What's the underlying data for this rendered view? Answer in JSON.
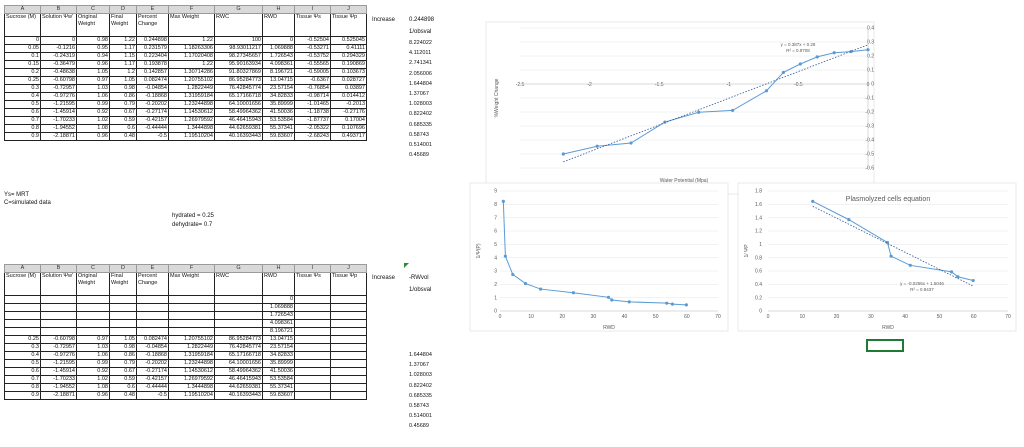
{
  "colors": {
    "series": "#5b9bd5",
    "trend": "#2f5597",
    "selection": "#1e7b34",
    "grid_header": "#d9d9d9"
  },
  "column_letters": [
    "A",
    "B",
    "C",
    "D",
    "E",
    "F",
    "G",
    "H",
    "I",
    "J"
  ],
  "table1": {
    "headers": [
      "Sucrose (M)",
      "Solution Ψw'",
      "Original Weight",
      "Final Weight",
      "Percent Change",
      "Max Weight",
      "RWC",
      "RWD",
      "Tissue Ψs",
      "Tissue Ψp"
    ],
    "rows": [
      [
        "0",
        "0",
        "0.98",
        "1.22",
        "0.244898",
        "1.22",
        "100",
        "0",
        "-0.52504",
        "0.525045"
      ],
      [
        "0.05",
        "-0.1216",
        "0.95",
        "1.17",
        "0.231579",
        "1.18263306",
        "98.93011217",
        "1.069888",
        "-0.53271",
        "0.41111"
      ],
      [
        "0.1",
        "-0.24319",
        "0.94",
        "1.15",
        "0.223404",
        "1.17020408",
        "98.27345657",
        "1.726543",
        "-0.53752",
        "0.294329"
      ],
      [
        "0.15",
        "-0.36479",
        "0.96",
        "1.17",
        "0.193878",
        "1.22",
        "95.90163934",
        "4.098361",
        "-0.55565",
        "0.190869"
      ],
      [
        "0.2",
        "-0.48638",
        "1.05",
        "1.2",
        "0.142857",
        "1.30714286",
        "91.80327869",
        "8.196721",
        "-0.59005",
        "0.103673"
      ],
      [
        "0.25",
        "-0.60798",
        "0.97",
        "1.05",
        "0.082474",
        "1.20755102",
        "86.95284773",
        "13.04715",
        "-0.6367",
        "0.028727"
      ],
      [
        "0.3",
        "-0.72957",
        "1.03",
        "0.98",
        "-0.04854",
        "1.2822449",
        "76.42845774",
        "23.57154",
        "-0.76854",
        "0.03897"
      ],
      [
        "0.4",
        "-0.97276",
        "1.06",
        "0.86",
        "-0.18868",
        "1.31959184",
        "65.17166718",
        "34.82833",
        "-0.98714",
        "0.014412"
      ],
      [
        "0.5",
        "-1.21595",
        "0.99",
        "0.79",
        "-0.20202",
        "1.23244898",
        "64.10001656",
        "35.89999",
        "-1.01465",
        "-0.2013"
      ],
      [
        "0.6",
        "-1.45914",
        "0.92",
        "0.67",
        "-0.27174",
        "1.14530612",
        "58.49964362",
        "41.50036",
        "-1.18738",
        "-0.27176"
      ],
      [
        "0.7",
        "-1.70233",
        "1.02",
        "0.59",
        "-0.42157",
        "1.26979592",
        "46.46415943",
        "53.53584",
        "-1.87737",
        "0.17004"
      ],
      [
        "0.8",
        "-1.94552",
        "1.08",
        "0.6",
        "-0.44444",
        "1.3444898",
        "44.62659381",
        "55.37341",
        "-2.05322",
        "0.107696"
      ],
      [
        "0.9",
        "-2.18871",
        "0.96",
        "0.48",
        "-0.5",
        "1.19510204",
        "40.16393443",
        "59.83607",
        "-2.68243",
        "0.493717"
      ]
    ],
    "increase_label": "Increase",
    "col_k_header": "0.244898",
    "col_k_sub": "1/obsval",
    "col_k_values": [
      "8.224022",
      "4.112011",
      "2.741341",
      "2.056006",
      "1.644804",
      "1.37067",
      "1.028003",
      "0.822402",
      "0.685335",
      "0.58743",
      "0.514001",
      "0.45689"
    ]
  },
  "notes": {
    "line1": "Ys= MRT",
    "line2": "C=simulated data",
    "hydrated": "hydrated = 0.25",
    "dehydrated": "dehydrate= 0.7"
  },
  "table2": {
    "headers": [
      "Sucrose (M)",
      "Solution Ψw'",
      "Original Weight",
      "Final Weight",
      "Percent Change",
      "Max Weight",
      "RWC",
      "RWD",
      "Tissue Ψs",
      "Tissue Ψp"
    ],
    "rwd_only": [
      "0",
      "1.069888",
      "1.726543",
      "4.098361",
      "8.196721"
    ],
    "rows": [
      [
        "0.25",
        "-0.60798",
        "0.97",
        "1.05",
        "0.082474",
        "1.20755102",
        "86.95284773",
        "13.04715"
      ],
      [
        "0.3",
        "-0.72957",
        "1.03",
        "0.98",
        "-0.04854",
        "1.2822449",
        "76.42845774",
        "23.57154"
      ],
      [
        "0.4",
        "-0.97276",
        "1.06",
        "0.86",
        "-0.18868",
        "1.31959184",
        "65.17166718",
        "34.82833"
      ],
      [
        "0.5",
        "-1.21595",
        "0.99",
        "0.79",
        "-0.20202",
        "1.23244898",
        "64.10001656",
        "35.89999"
      ],
      [
        "0.6",
        "-1.45914",
        "0.92",
        "0.67",
        "-0.27174",
        "1.14530612",
        "58.49964362",
        "41.50036"
      ],
      [
        "0.7",
        "-1.70233",
        "1.02",
        "0.59",
        "-0.42157",
        "1.26979592",
        "46.46415943",
        "53.53584"
      ],
      [
        "0.8",
        "-1.94552",
        "1.08",
        "0.6",
        "-0.44444",
        "1.3444898",
        "44.62659381",
        "55.37341"
      ],
      [
        "0.9",
        "-2.18871",
        "0.96",
        "0.48",
        "-0.5",
        "1.19510204",
        "40.16393443",
        "59.83607"
      ]
    ],
    "increase_label": "Increase",
    "col_k_header": "-RWvol",
    "col_k_sub": "1/obsval",
    "col_k_values": [
      "1.644804",
      "1.37067",
      "1.028003",
      "0.822402",
      "0.685335",
      "0.58743",
      "0.514001",
      "0.45689"
    ]
  },
  "chart_data": [
    {
      "type": "scatter",
      "title": "",
      "xlabel": "Water Potential (Mpa)",
      "ylabel": "%Weight Change",
      "xlim": [
        -2.5,
        0
      ],
      "ylim": [
        -0.6,
        0.4
      ],
      "x_ticks": [
        "-2.5",
        "-2",
        "-1.5",
        "-1",
        "-0.5",
        "0"
      ],
      "y_ticks": [
        "0.4",
        "0.3",
        "0.2",
        "0.1",
        "0",
        "-0.1",
        "-0.2",
        "-0.3",
        "-0.4",
        "-0.5",
        "-0.6"
      ],
      "trendline": true,
      "equation": "y = 0.387x + 0.28",
      "r2": "R² = 0.9708",
      "x": [
        -2.18871,
        -1.94552,
        -1.70233,
        -1.45914,
        -1.21595,
        -0.97276,
        -0.72957,
        -0.60798,
        -0.48638,
        -0.36479,
        -0.24319,
        -0.1216,
        0
      ],
      "y": [
        -0.5,
        -0.44444,
        -0.42157,
        -0.27174,
        -0.20202,
        -0.18868,
        -0.04854,
        0.082474,
        0.142857,
        0.193878,
        0.223404,
        0.231579,
        0.244898
      ]
    },
    {
      "type": "line",
      "title": "",
      "xlabel": "RWD",
      "ylabel": "1/Ψ(P)",
      "xlim": [
        0,
        70
      ],
      "ylim": [
        0,
        9
      ],
      "x_ticks": [
        "0",
        "10",
        "20",
        "30",
        "40",
        "50",
        "60",
        "70"
      ],
      "y_ticks": [
        "0",
        "1",
        "2",
        "3",
        "4",
        "5",
        "6",
        "7",
        "8",
        "9"
      ],
      "x": [
        1.069888,
        1.726543,
        4.098361,
        8.196721,
        13.04715,
        23.57154,
        34.82833,
        35.89999,
        41.50036,
        53.53584,
        55.37341,
        59.83607
      ],
      "y": [
        8.224022,
        4.112011,
        2.741341,
        2.056006,
        1.644804,
        1.37067,
        1.028003,
        0.822402,
        0.685335,
        0.58743,
        0.514001,
        0.45689
      ]
    },
    {
      "type": "line",
      "title": "Plasmolyzed cells equation",
      "xlabel": "RWD",
      "ylabel": "1/ ΨP",
      "xlim": [
        0,
        70
      ],
      "ylim": [
        0,
        1.8
      ],
      "x_ticks": [
        "0",
        "10",
        "20",
        "30",
        "40",
        "50",
        "60",
        "70"
      ],
      "y_ticks": [
        "0",
        "0.2",
        "0.4",
        "0.6",
        "0.8",
        "1",
        "1.2",
        "1.4",
        "1.6",
        "1.8"
      ],
      "trendline": true,
      "equation": "y = -0.0256x + 1.5046",
      "r2": "R² = 0.9437",
      "x": [
        13.04715,
        23.57154,
        34.82833,
        35.89999,
        41.50036,
        53.53584,
        55.37341,
        59.83607
      ],
      "y": [
        1.644804,
        1.37067,
        1.028003,
        0.822402,
        0.685335,
        0.58743,
        0.514001,
        0.45689
      ]
    }
  ]
}
